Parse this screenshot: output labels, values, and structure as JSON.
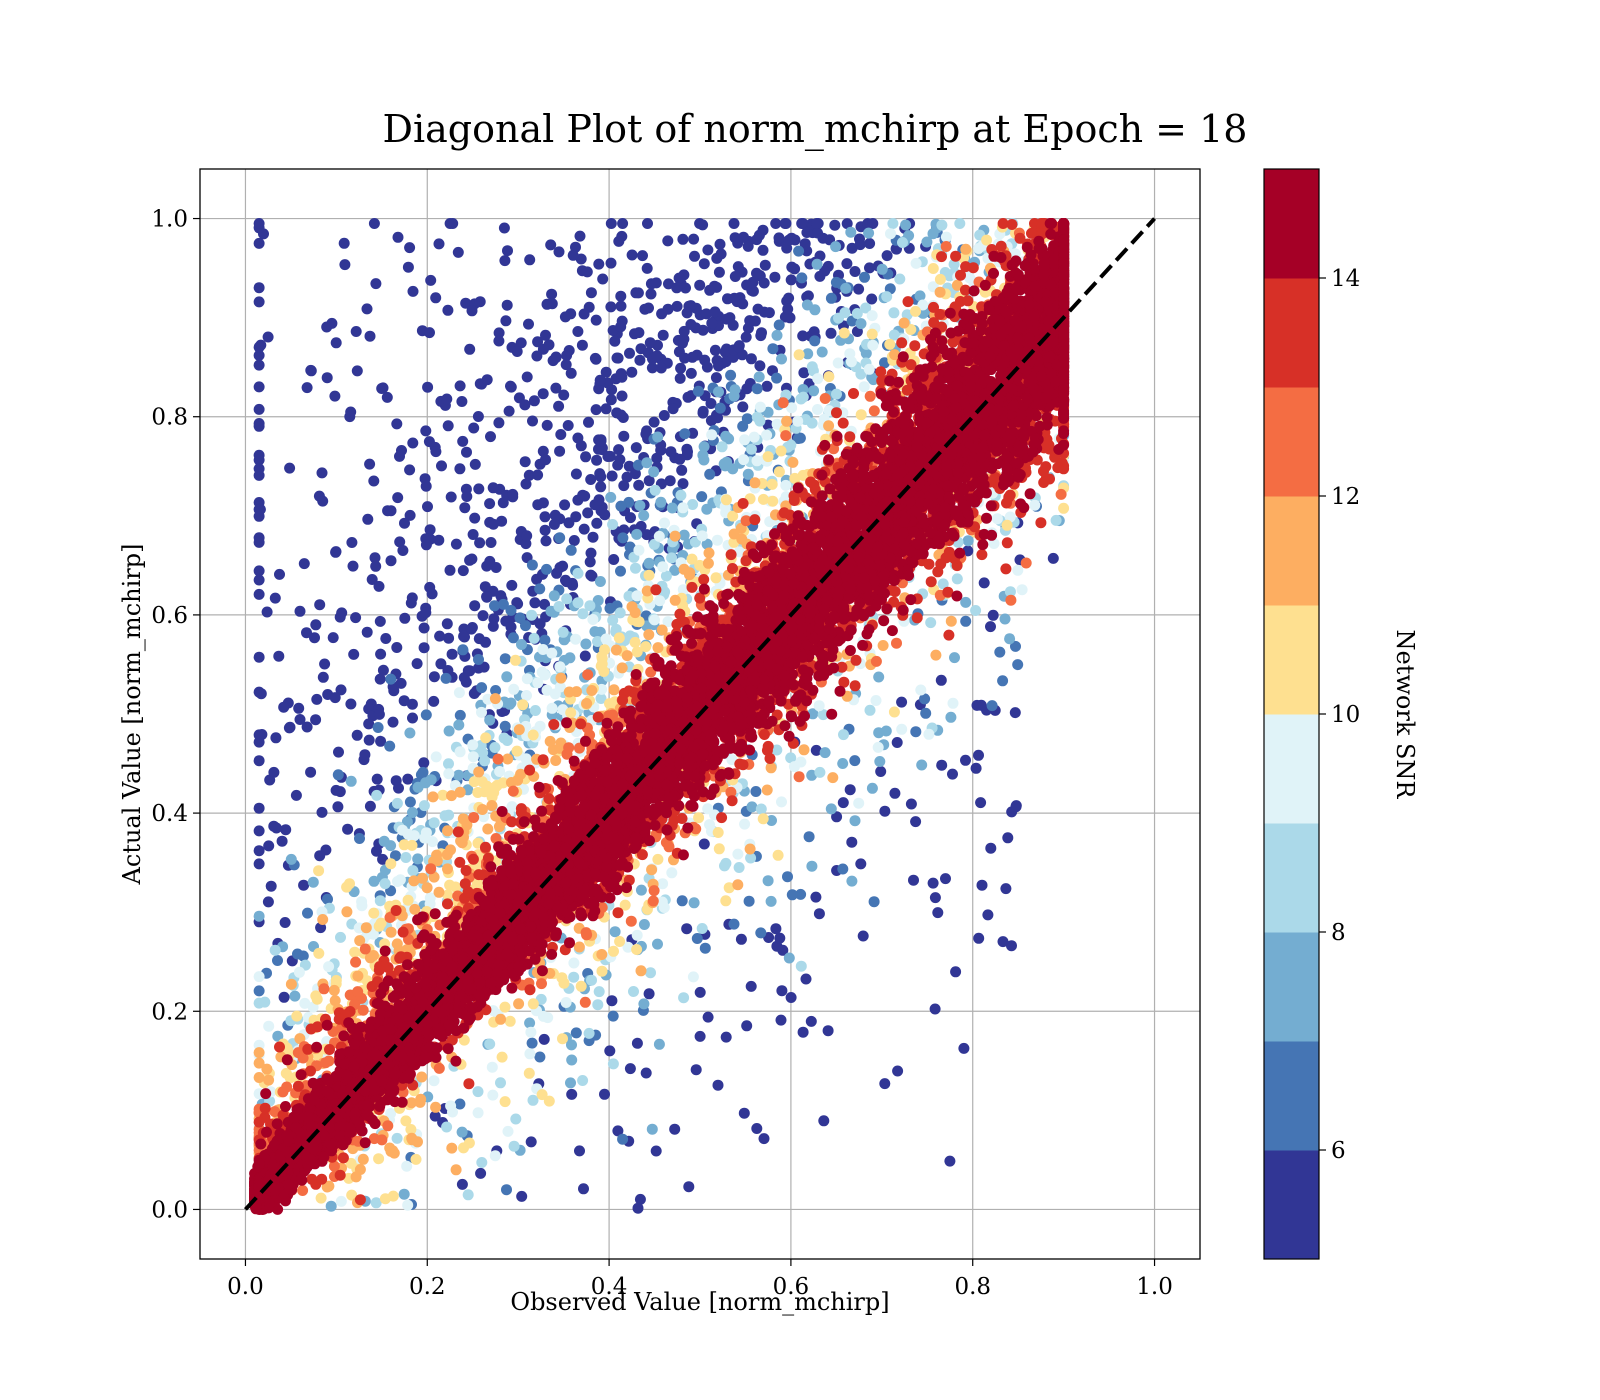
{
  "chart_data": {
    "type": "scatter",
    "title": "Diagonal Plot of norm_mchirp at Epoch = 18",
    "xlabel": "Observed Value [norm_mchirp]",
    "ylabel": "Actual Value [norm_mchirp]",
    "xlim": [
      -0.05,
      1.05
    ],
    "ylim": [
      -0.05,
      1.05
    ],
    "xticks": [
      "0.0",
      "0.2",
      "0.4",
      "0.6",
      "0.8",
      "1.0"
    ],
    "yticks": [
      "0.0",
      "0.2",
      "0.4",
      "0.6",
      "0.8",
      "1.0"
    ],
    "grid": true,
    "reference_line": {
      "style": "dashed",
      "color": "#000000",
      "from": [
        0,
        0
      ],
      "to": [
        1,
        1
      ]
    },
    "colorbar": {
      "label": "Network SNR",
      "range": [
        5,
        15
      ],
      "ticks": [
        "6",
        "8",
        "10",
        "12",
        "14"
      ],
      "levels": [
        5,
        6,
        7,
        8,
        9,
        10,
        11,
        12,
        13,
        14,
        15
      ],
      "colors": [
        "#313695",
        "#4575b4",
        "#74add1",
        "#abd9e9",
        "#e0f3f8",
        "#fee090",
        "#fdae61",
        "#f46d43",
        "#d73027",
        "#a50026"
      ]
    },
    "series_summary": "Dense cloud of points along the diagonal with high SNR (>14) concentrated near y = x; low SNR points (5-9) spread above the diagonal toward the upper-left; x range about 0.01-0.90, y range about 0.0-1.0"
  }
}
